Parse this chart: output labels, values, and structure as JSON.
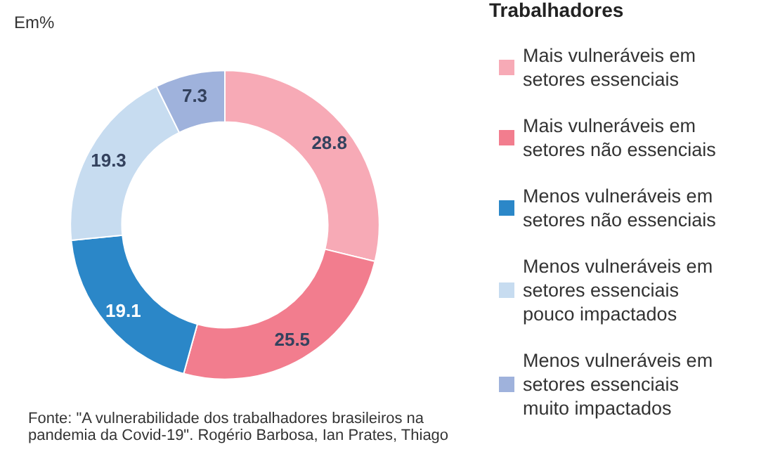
{
  "chart_data": {
    "type": "donut",
    "subtitle": "Em%",
    "legend_title": "Trabalhadores",
    "categories": [
      "Mais vulneráveis em setores essenciais",
      "Mais vulneráveis em setores não essenciais",
      "Menos vulneráveis em setores não essenciais",
      "Menos vulneráveis em setores essenciais pouco impactados",
      "Menos vulneráveis em setores essenciais muito impactados"
    ],
    "values": [
      28.8,
      25.5,
      19.1,
      19.3,
      7.3
    ],
    "colors": [
      "#f7aab6",
      "#f27d8e",
      "#2b87c8",
      "#c7dcf0",
      "#9fb2dc"
    ],
    "data_labels": true,
    "legend": "right",
    "annotations": [
      "Fonte: \"A vulnerabilidade dos trabalhadores brasileiros na pandemia da Covid-19\". Rogério Barbosa, Ian Prates, Thiago"
    ]
  }
}
